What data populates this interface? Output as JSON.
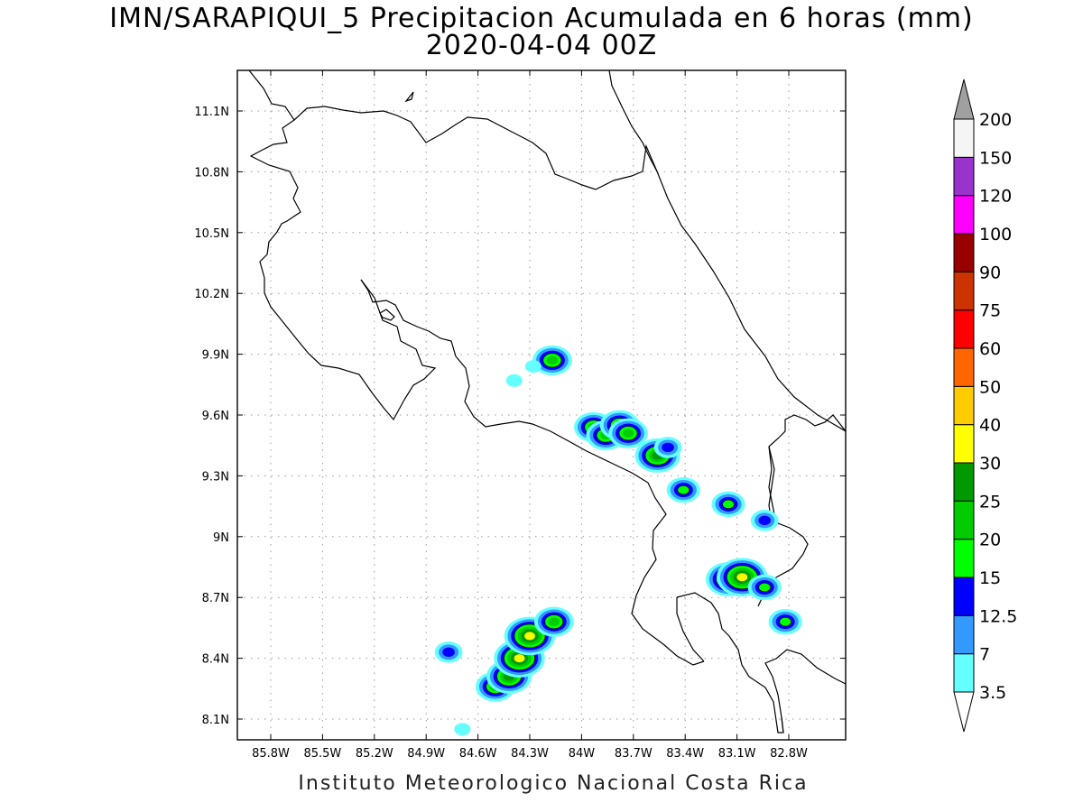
{
  "title": {
    "line1": "IMN/SARAPIQUI_5 Precipitacion Acumulada en 6 horas (mm)",
    "line2": "2020-04-04 00Z"
  },
  "footer": "Instituto Meteorologico Nacional Costa Rica",
  "axes": {
    "x_ticks": [
      "85.8W",
      "85.5W",
      "85.2W",
      "84.9W",
      "84.6W",
      "84.3W",
      "84W",
      "83.7W",
      "83.4W",
      "83.1W",
      "82.8W"
    ],
    "y_ticks": [
      "11.1N",
      "10.8N",
      "10.5N",
      "10.2N",
      "9.9N",
      "9.6N",
      "9.3N",
      "9N",
      "8.7N",
      "8.4N",
      "8.1N"
    ],
    "x_values": [
      -85.8,
      -85.5,
      -85.2,
      -84.9,
      -84.6,
      -84.3,
      -84.0,
      -83.7,
      -83.4,
      -83.1,
      -82.8
    ],
    "y_values": [
      11.1,
      10.8,
      10.5,
      10.2,
      9.9,
      9.6,
      9.3,
      9.0,
      8.7,
      8.4,
      8.1
    ],
    "grid": "dotted"
  },
  "colorbar": {
    "labels": [
      "3.5",
      "7",
      "12.5",
      "15",
      "20",
      "25",
      "30",
      "40",
      "50",
      "60",
      "75",
      "90",
      "100",
      "120",
      "150",
      "200"
    ],
    "colors": [
      "#66ffff",
      "#3399ff",
      "#0000ff",
      "#00ff00",
      "#00cc00",
      "#009900",
      "#ffff00",
      "#ffcc00",
      "#ff6600",
      "#ff0000",
      "#cc3300",
      "#990000",
      "#ff00ff",
      "#9933cc",
      "#f5f5f5"
    ],
    "below_color": "#ffffff",
    "above_color": "#a0a0a0"
  },
  "precip_cells": [
    {
      "lon": -84.17,
      "lat": 9.87,
      "level": "20-25"
    },
    {
      "lon": -84.28,
      "lat": 9.84,
      "level": "3.5-7"
    },
    {
      "lon": -84.39,
      "lat": 9.77,
      "level": "3.5-7"
    },
    {
      "lon": -83.93,
      "lat": 9.54,
      "level": "20-25"
    },
    {
      "lon": -83.86,
      "lat": 9.5,
      "level": "20-25"
    },
    {
      "lon": -83.78,
      "lat": 9.55,
      "level": "20-25"
    },
    {
      "lon": -83.73,
      "lat": 9.51,
      "level": "20-25"
    },
    {
      "lon": -83.56,
      "lat": 9.4,
      "level": "25-30"
    },
    {
      "lon": -83.5,
      "lat": 9.44,
      "level": "12.5-15"
    },
    {
      "lon": -83.41,
      "lat": 9.23,
      "level": "15-20"
    },
    {
      "lon": -83.15,
      "lat": 9.16,
      "level": "15-20"
    },
    {
      "lon": -82.94,
      "lat": 9.08,
      "level": "12.5-15"
    },
    {
      "lon": -83.15,
      "lat": 8.79,
      "level": "25-30"
    },
    {
      "lon": -83.07,
      "lat": 8.8,
      "level": "30-40"
    },
    {
      "lon": -82.94,
      "lat": 8.75,
      "level": "15-20"
    },
    {
      "lon": -82.82,
      "lat": 8.58,
      "level": "15-20"
    },
    {
      "lon": -84.5,
      "lat": 8.26,
      "level": "20-25"
    },
    {
      "lon": -84.42,
      "lat": 8.31,
      "level": "25-30"
    },
    {
      "lon": -84.36,
      "lat": 8.4,
      "level": "30-40"
    },
    {
      "lon": -84.3,
      "lat": 8.51,
      "level": "30-40"
    },
    {
      "lon": -84.16,
      "lat": 8.58,
      "level": "20-25"
    },
    {
      "lon": -84.77,
      "lat": 8.43,
      "level": "12.5-15"
    },
    {
      "lon": -84.69,
      "lat": 8.05,
      "level": "3.5-7"
    }
  ]
}
